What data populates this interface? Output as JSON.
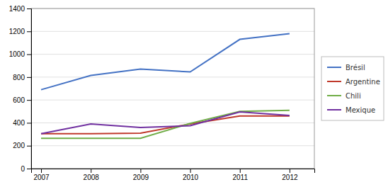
{
  "chart_data": {
    "type": "line",
    "x": [
      2007,
      2008,
      2009,
      2010,
      2011,
      2012
    ],
    "series": [
      {
        "name": "Brésil",
        "color": "#4472c4",
        "values": [
          690,
          815,
          870,
          845,
          1130,
          1180
        ]
      },
      {
        "name": "Argentine",
        "color": "#c0392b",
        "values": [
          305,
          305,
          310,
          390,
          460,
          460
        ]
      },
      {
        "name": "Chili",
        "color": "#70ad47",
        "values": [
          265,
          265,
          265,
          395,
          500,
          510
        ]
      },
      {
        "name": "Mexique",
        "color": "#7030a0",
        "values": [
          305,
          390,
          360,
          375,
          495,
          465
        ]
      }
    ],
    "xlim": [
      2006.8,
      2012.5
    ],
    "xticks": [
      2007,
      2008,
      2009,
      2010,
      2011,
      2012
    ],
    "ylim": [
      0,
      1400
    ],
    "yticks": [
      0,
      200,
      400,
      600,
      800,
      1000,
      1200,
      1400
    ],
    "grid": "y",
    "legend": "right"
  }
}
